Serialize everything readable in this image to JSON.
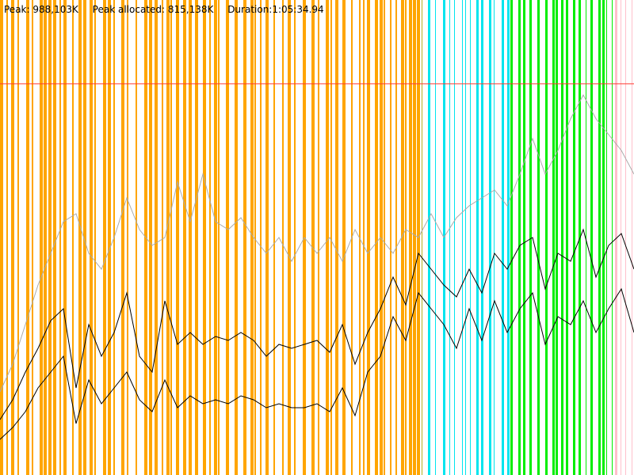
{
  "stats": {
    "peak": "Peak: 988,103K",
    "peak_allocated": "Peak allocated: 815,138K",
    "duration": "Duration:1:05:34.94"
  },
  "chart_data": {
    "type": "line",
    "title": "",
    "xlabel": "",
    "ylabel": "",
    "x_unit": "sample index",
    "y_unit": "K",
    "xlim": [
      0,
      100
    ],
    "ylim": [
      0,
      1200000
    ],
    "grid": false,
    "reference_lines": [
      {
        "value": 988103,
        "color": "#ff3b30"
      }
    ],
    "series": [
      {
        "color": "#aaaaaa",
        "x": [
          0,
          2,
          4,
          6,
          8,
          10,
          12,
          14,
          16,
          18,
          20,
          22,
          24,
          26,
          28,
          30,
          32,
          34,
          36,
          38,
          40,
          42,
          44,
          46,
          48,
          50,
          52,
          54,
          56,
          58,
          60,
          62,
          64,
          66,
          68,
          70,
          72,
          74,
          76,
          78,
          80,
          82,
          84,
          86,
          88,
          90,
          92,
          94,
          96,
          98,
          100
        ],
        "values": [
          210000,
          280000,
          380000,
          480000,
          560000,
          640000,
          660000,
          560000,
          520000,
          600000,
          700000,
          620000,
          580000,
          600000,
          740000,
          640000,
          760000,
          640000,
          620000,
          650000,
          600000,
          560000,
          600000,
          540000,
          600000,
          560000,
          600000,
          540000,
          620000,
          560000,
          600000,
          560000,
          620000,
          600000,
          660000,
          600000,
          650000,
          680000,
          700000,
          720000,
          680000,
          760000,
          850000,
          760000,
          820000,
          900000,
          960000,
          900000,
          860000,
          820000,
          760000
        ]
      },
      {
        "color": "#000000",
        "x": [
          0,
          2,
          4,
          6,
          8,
          10,
          12,
          14,
          16,
          18,
          20,
          22,
          24,
          26,
          28,
          30,
          32,
          34,
          36,
          38,
          40,
          42,
          44,
          46,
          48,
          50,
          52,
          54,
          56,
          58,
          60,
          62,
          64,
          66,
          68,
          70,
          72,
          74,
          76,
          78,
          80,
          82,
          84,
          86,
          88,
          90,
          92,
          94,
          96,
          98,
          100
        ],
        "values": [
          140000,
          190000,
          260000,
          320000,
          390000,
          420000,
          220000,
          380000,
          300000,
          360000,
          460000,
          300000,
          260000,
          440000,
          330000,
          360000,
          330000,
          350000,
          340000,
          360000,
          340000,
          300000,
          330000,
          320000,
          330000,
          340000,
          310000,
          380000,
          280000,
          360000,
          420000,
          500000,
          430000,
          560000,
          520000,
          480000,
          450000,
          520000,
          460000,
          560000,
          520000,
          580000,
          600000,
          470000,
          560000,
          540000,
          620000,
          500000,
          580000,
          610000,
          520000
        ]
      },
      {
        "color": "#000000",
        "x": [
          0,
          2,
          4,
          6,
          8,
          10,
          12,
          14,
          16,
          18,
          20,
          22,
          24,
          26,
          28,
          30,
          32,
          34,
          36,
          38,
          40,
          42,
          44,
          46,
          48,
          50,
          52,
          54,
          56,
          58,
          60,
          62,
          64,
          66,
          68,
          70,
          72,
          74,
          76,
          78,
          80,
          82,
          84,
          86,
          88,
          90,
          92,
          94,
          96,
          98,
          100
        ],
        "values": [
          90000,
          120000,
          160000,
          220000,
          260000,
          300000,
          130000,
          240000,
          180000,
          220000,
          260000,
          190000,
          160000,
          240000,
          170000,
          200000,
          180000,
          190000,
          180000,
          200000,
          190000,
          170000,
          180000,
          170000,
          170000,
          180000,
          160000,
          220000,
          150000,
          260000,
          300000,
          400000,
          340000,
          460000,
          420000,
          380000,
          320000,
          420000,
          340000,
          440000,
          360000,
          420000,
          460000,
          330000,
          400000,
          380000,
          440000,
          360000,
          420000,
          470000,
          360000
        ]
      }
    ],
    "phases": [
      {
        "color": "#ffa500",
        "range": [
          0,
          66.5
        ]
      },
      {
        "color": "#b0b020",
        "range": [
          66.5,
          67.5
        ]
      },
      {
        "color": "#00e5ee",
        "range": [
          67.5,
          80.5
        ]
      },
      {
        "color": "#00ee00",
        "range": [
          80.5,
          97.0
        ]
      },
      {
        "color": "#ffc0cb",
        "range": [
          97.0,
          100
        ]
      }
    ]
  }
}
